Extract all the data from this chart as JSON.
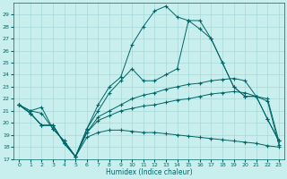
{
  "xlabel": "Humidex (Indice chaleur)",
  "bg_color": "#c8eeee",
  "grid_color": "#a8d8d8",
  "line_color": "#006666",
  "xlim": [
    -0.5,
    23.5
  ],
  "ylim": [
    17,
    30
  ],
  "yticks": [
    17,
    18,
    19,
    20,
    21,
    22,
    23,
    24,
    25,
    26,
    27,
    28,
    29
  ],
  "xticks": [
    0,
    1,
    2,
    3,
    4,
    5,
    6,
    7,
    8,
    9,
    10,
    11,
    12,
    13,
    14,
    15,
    16,
    17,
    18,
    19,
    20,
    21,
    22,
    23
  ],
  "line1": [
    21.5,
    21.0,
    21.3,
    19.5,
    18.5,
    17.2,
    19.5,
    21.5,
    23.0,
    23.8,
    26.5,
    28.0,
    29.3,
    29.7,
    28.8,
    28.5,
    28.5,
    27.0,
    25.0,
    23.0,
    22.2,
    22.2,
    20.3,
    18.5
  ],
  "line2": [
    21.5,
    21.0,
    20.8,
    19.5,
    18.5,
    17.2,
    19.5,
    21.0,
    22.5,
    23.5,
    24.5,
    23.5,
    23.5,
    24.0,
    24.5,
    28.5,
    27.8,
    27.0,
    25.0,
    23.0,
    22.2,
    22.2,
    20.3,
    18.5
  ],
  "line3": [
    21.5,
    20.8,
    19.8,
    19.8,
    18.3,
    17.2,
    19.2,
    20.5,
    21.0,
    21.5,
    22.0,
    22.3,
    22.5,
    22.8,
    23.0,
    23.2,
    23.3,
    23.5,
    23.6,
    23.7,
    23.5,
    22.2,
    22.0,
    18.5
  ],
  "line4": [
    21.5,
    20.8,
    19.8,
    19.8,
    18.3,
    17.2,
    19.2,
    20.2,
    20.6,
    21.0,
    21.2,
    21.4,
    21.5,
    21.7,
    21.9,
    22.0,
    22.2,
    22.4,
    22.5,
    22.6,
    22.5,
    22.2,
    21.8,
    18.2
  ],
  "line5": [
    21.5,
    20.8,
    19.8,
    19.8,
    18.3,
    17.2,
    18.8,
    19.2,
    19.4,
    19.4,
    19.3,
    19.2,
    19.2,
    19.1,
    19.0,
    18.9,
    18.8,
    18.7,
    18.6,
    18.5,
    18.4,
    18.3,
    18.1,
    18.0
  ]
}
